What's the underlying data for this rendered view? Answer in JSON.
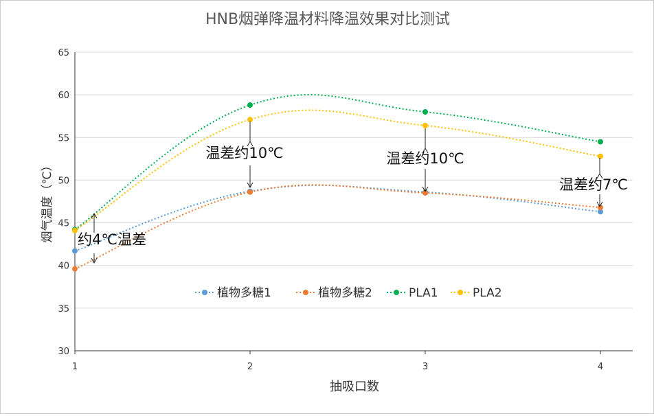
{
  "chart_data": {
    "type": "line",
    "title": "HNB烟弹降温材料降温效果对比测试",
    "xlabel": "抽吸口数",
    "ylabel": "烟气温度（℃）",
    "x": [
      1,
      2,
      3,
      4
    ],
    "xticks": [
      "1",
      "2",
      "3",
      "4"
    ],
    "ylim": [
      30,
      65
    ],
    "yticks": [
      "30",
      "35",
      "40",
      "45",
      "50",
      "55",
      "60",
      "65"
    ],
    "grid": true,
    "legend": "inside-bottom-center",
    "series": [
      {
        "name": "植物多糖1",
        "color": "#5b9bd5",
        "values": [
          41.7,
          48.7,
          48.6,
          46.3
        ]
      },
      {
        "name": "植物多糖2",
        "color": "#ed7d31",
        "values": [
          39.6,
          48.6,
          48.5,
          46.8
        ]
      },
      {
        "name": "PLA1",
        "color": "#00b050",
        "values": [
          44.2,
          58.8,
          58.0,
          54.5
        ]
      },
      {
        "name": "PLA2",
        "color": "#ffc000",
        "values": [
          44.1,
          57.1,
          56.4,
          52.8
        ]
      }
    ],
    "annotations": [
      "约4℃温差",
      "温差约10℃",
      "温差约10℃",
      "温差约7℃"
    ]
  }
}
